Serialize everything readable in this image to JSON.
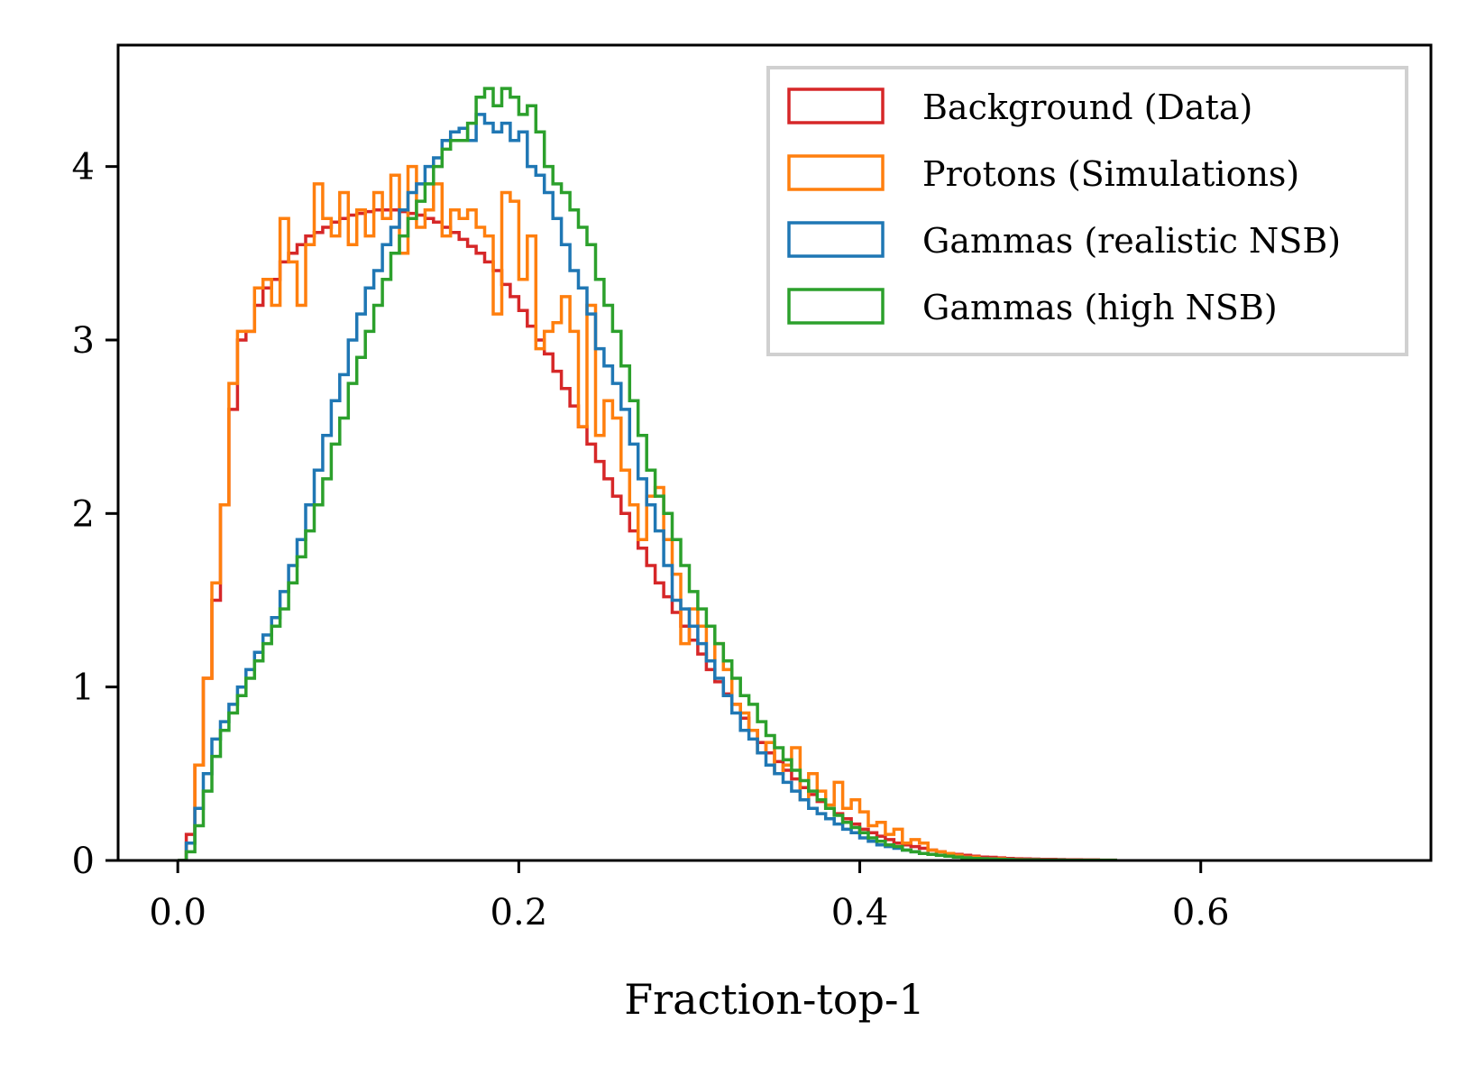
{
  "chart_data": {
    "type": "histogram",
    "title": "",
    "xlabel": "Fraction-top-1",
    "ylabel": "",
    "xlim": [
      -0.035,
      0.735
    ],
    "ylim": [
      0,
      4.7
    ],
    "xticks": [
      0.0,
      0.2,
      0.4,
      0.6
    ],
    "xtick_labels": [
      "0.0",
      "0.2",
      "0.4",
      "0.6"
    ],
    "yticks": [
      0,
      1,
      2,
      3,
      4
    ],
    "ytick_labels": [
      "0",
      "1",
      "2",
      "3",
      "4"
    ],
    "grid": false,
    "legend_position": "top-right",
    "bin_start": 0.0,
    "bin_width": 0.005,
    "series": [
      {
        "name": "Background (Data)",
        "color": "#d62728",
        "values": [
          0,
          0.15,
          0.55,
          1.05,
          1.5,
          2.05,
          2.6,
          3.0,
          3.05,
          3.2,
          3.3,
          3.35,
          3.45,
          3.5,
          3.55,
          3.6,
          3.62,
          3.65,
          3.68,
          3.7,
          3.72,
          3.73,
          3.74,
          3.75,
          3.75,
          3.75,
          3.74,
          3.73,
          3.72,
          3.7,
          3.68,
          3.65,
          3.62,
          3.58,
          3.54,
          3.5,
          3.45,
          3.4,
          3.32,
          3.25,
          3.17,
          3.08,
          3.0,
          2.92,
          2.82,
          2.72,
          2.62,
          2.5,
          2.4,
          2.3,
          2.2,
          2.1,
          2.0,
          1.9,
          1.8,
          1.7,
          1.6,
          1.52,
          1.43,
          1.35,
          1.27,
          1.19,
          1.1,
          1.03,
          0.96,
          0.9,
          0.82,
          0.75,
          0.68,
          0.62,
          0.57,
          0.52,
          0.47,
          0.42,
          0.38,
          0.34,
          0.3,
          0.27,
          0.24,
          0.21,
          0.18,
          0.16,
          0.14,
          0.12,
          0.1,
          0.09,
          0.08,
          0.07,
          0.06,
          0.05,
          0.04,
          0.035,
          0.03,
          0.025,
          0.02,
          0.018,
          0.015,
          0.012,
          0.01,
          0.009,
          0.008,
          0.007,
          0.006,
          0.005,
          0.004,
          0.004,
          0.003,
          0.003,
          0.002,
          0.002
        ]
      },
      {
        "name": "Protons (Simulations)",
        "color": "#ff7f0e",
        "values": [
          0,
          0.1,
          0.55,
          1.05,
          1.6,
          2.05,
          2.75,
          3.05,
          3.05,
          3.3,
          3.35,
          3.2,
          3.7,
          3.45,
          3.2,
          3.55,
          3.9,
          3.7,
          3.6,
          3.85,
          3.55,
          3.75,
          3.6,
          3.85,
          3.7,
          3.95,
          3.5,
          4.0,
          3.65,
          3.75,
          3.9,
          3.6,
          3.75,
          3.7,
          3.75,
          3.65,
          3.6,
          3.15,
          3.85,
          3.8,
          3.35,
          3.6,
          2.95,
          3.05,
          3.1,
          3.25,
          3.05,
          2.5,
          3.2,
          2.45,
          2.65,
          2.55,
          2.25,
          2.05,
          1.85,
          2.1,
          2.15,
          1.85,
          1.65,
          1.25,
          1.45,
          1.35,
          1.15,
          1.25,
          1.1,
          0.9,
          0.85,
          0.75,
          0.62,
          0.68,
          0.5,
          0.55,
          0.65,
          0.35,
          0.5,
          0.4,
          0.32,
          0.45,
          0.3,
          0.35,
          0.28,
          0.2,
          0.22,
          0.15,
          0.18,
          0.1,
          0.12,
          0.1,
          0.06,
          0.05,
          0.04,
          0.03,
          0.02,
          0.02,
          0.01,
          0.01,
          0.01,
          0,
          0,
          0,
          0,
          0,
          0,
          0,
          0,
          0,
          0,
          0,
          0,
          0
        ]
      },
      {
        "name": "Gammas (realistic NSB)",
        "color": "#1f77b4",
        "values": [
          0,
          0.1,
          0.3,
          0.5,
          0.7,
          0.8,
          0.9,
          1.0,
          1.1,
          1.2,
          1.3,
          1.4,
          1.55,
          1.7,
          1.85,
          2.05,
          2.25,
          2.45,
          2.65,
          2.8,
          3.0,
          3.15,
          3.3,
          3.4,
          3.55,
          3.65,
          3.75,
          3.85,
          3.9,
          4.0,
          4.05,
          4.15,
          4.2,
          4.22,
          4.15,
          4.3,
          4.25,
          4.2,
          4.25,
          4.15,
          4.2,
          4.0,
          3.95,
          3.85,
          3.7,
          3.55,
          3.4,
          3.3,
          3.15,
          2.95,
          2.85,
          2.75,
          2.6,
          2.4,
          2.2,
          2.05,
          1.9,
          1.7,
          1.5,
          1.45,
          1.35,
          1.25,
          1.15,
          1.05,
          0.95,
          0.85,
          0.75,
          0.7,
          0.62,
          0.55,
          0.5,
          0.45,
          0.4,
          0.35,
          0.3,
          0.27,
          0.24,
          0.21,
          0.18,
          0.16,
          0.13,
          0.11,
          0.09,
          0.08,
          0.07,
          0.06,
          0.05,
          0.04,
          0.035,
          0.03,
          0.025,
          0.02,
          0.015,
          0.012,
          0.01,
          0.008,
          0.006,
          0.005,
          0.004,
          0.003,
          0.003,
          0.002,
          0.002,
          0.002,
          0.001,
          0.001,
          0.001,
          0.001,
          0.001,
          0.001
        ]
      },
      {
        "name": "Gammas (high NSB)",
        "color": "#2ca02c",
        "values": [
          0,
          0.05,
          0.2,
          0.4,
          0.6,
          0.75,
          0.85,
          0.95,
          1.05,
          1.15,
          1.25,
          1.35,
          1.45,
          1.6,
          1.75,
          1.9,
          2.05,
          2.2,
          2.4,
          2.55,
          2.75,
          2.9,
          3.05,
          3.2,
          3.35,
          3.5,
          3.6,
          3.7,
          3.8,
          3.9,
          4.0,
          4.1,
          4.15,
          4.15,
          4.25,
          4.4,
          4.45,
          4.35,
          4.45,
          4.4,
          4.3,
          4.35,
          4.2,
          4.0,
          3.9,
          3.85,
          3.75,
          3.65,
          3.55,
          3.35,
          3.2,
          3.05,
          2.85,
          2.65,
          2.45,
          2.25,
          2.1,
          2.0,
          1.85,
          1.7,
          1.55,
          1.45,
          1.35,
          1.25,
          1.15,
          1.05,
          0.95,
          0.9,
          0.8,
          0.72,
          0.65,
          0.58,
          0.52,
          0.46,
          0.4,
          0.35,
          0.3,
          0.26,
          0.22,
          0.19,
          0.16,
          0.13,
          0.11,
          0.09,
          0.08,
          0.06,
          0.05,
          0.04,
          0.035,
          0.03,
          0.025,
          0.02,
          0.015,
          0.012,
          0.01,
          0.008,
          0.006,
          0.005,
          0.004,
          0.003,
          0.003,
          0.002,
          0.002,
          0.002,
          0.001,
          0.001,
          0.001,
          0.001,
          0.001,
          0.001
        ]
      }
    ]
  }
}
